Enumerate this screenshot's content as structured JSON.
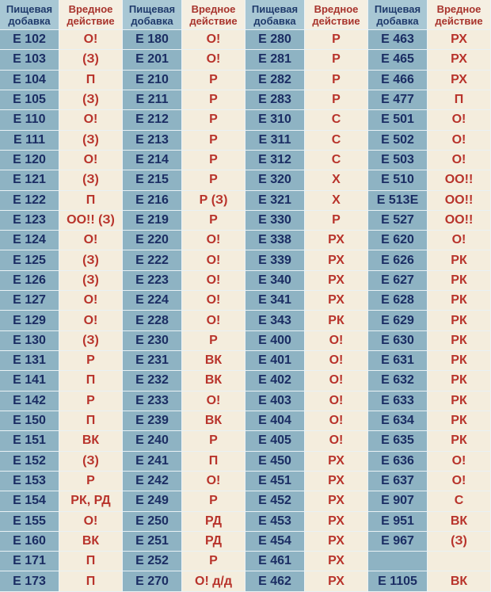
{
  "headers": {
    "code": "Пищевая добавка",
    "action": "Вредное действие"
  },
  "colors": {
    "code_bg": "#8eb3c3",
    "code_text": "#1b2d63",
    "action_bg": "#f4eddd",
    "action_text": "#b8332b"
  },
  "columns": [
    {
      "rows": [
        [
          "E 102",
          "О!"
        ],
        [
          "E 103",
          "(З)"
        ],
        [
          "E 104",
          "П"
        ],
        [
          "E 105",
          "(З)"
        ],
        [
          "E 110",
          "О!"
        ],
        [
          "E 111",
          "(З)"
        ],
        [
          "E 120",
          "О!"
        ],
        [
          "E 121",
          "(З)"
        ],
        [
          "E 122",
          "П"
        ],
        [
          "E 123",
          "ОО!! (З)"
        ],
        [
          "E 124",
          "О!"
        ],
        [
          "E 125",
          "(З)"
        ],
        [
          "E 126",
          "(З)"
        ],
        [
          "E 127",
          "О!"
        ],
        [
          "E 129",
          "О!"
        ],
        [
          "E 130",
          "(З)"
        ],
        [
          "E 131",
          "Р"
        ],
        [
          "E 141",
          "П"
        ],
        [
          "E 142",
          "Р"
        ],
        [
          "E 150",
          "П"
        ],
        [
          "E 151",
          "ВК"
        ],
        [
          "E 152",
          "(З)"
        ],
        [
          "E 153",
          "Р"
        ],
        [
          "E 154",
          "РК, РД"
        ],
        [
          "E 155",
          "О!"
        ],
        [
          "E 160",
          "ВК"
        ],
        [
          "E 171",
          "П"
        ],
        [
          "E 173",
          "П"
        ]
      ]
    },
    {
      "rows": [
        [
          "E 180",
          "О!"
        ],
        [
          "E 201",
          "О!"
        ],
        [
          "E 210",
          "Р"
        ],
        [
          "E 211",
          "Р"
        ],
        [
          "E 212",
          "Р"
        ],
        [
          "E 213",
          "Р"
        ],
        [
          "E 214",
          "Р"
        ],
        [
          "E 215",
          "Р"
        ],
        [
          "E 216",
          "Р (З)"
        ],
        [
          "E 219",
          "Р"
        ],
        [
          "E 220",
          "О!"
        ],
        [
          "E 222",
          "О!"
        ],
        [
          "E 223",
          "О!"
        ],
        [
          "E 224",
          "О!"
        ],
        [
          "E 228",
          "О!"
        ],
        [
          "E 230",
          "Р"
        ],
        [
          "E 231",
          "ВК"
        ],
        [
          "E 232",
          "ВК"
        ],
        [
          "E 233",
          "О!"
        ],
        [
          "E 239",
          "ВК"
        ],
        [
          "E 240",
          "Р"
        ],
        [
          "E 241",
          "П"
        ],
        [
          "E 242",
          "О!"
        ],
        [
          "E 249",
          "Р"
        ],
        [
          "E 250",
          "РД"
        ],
        [
          "E 251",
          "РД"
        ],
        [
          "E 252",
          "Р"
        ],
        [
          "E 270",
          "О! д/д"
        ]
      ]
    },
    {
      "rows": [
        [
          "E 280",
          "Р"
        ],
        [
          "E 281",
          "Р"
        ],
        [
          "E 282",
          "Р"
        ],
        [
          "E 283",
          "Р"
        ],
        [
          "E 310",
          "С"
        ],
        [
          "E 311",
          "С"
        ],
        [
          "E 312",
          "С"
        ],
        [
          "E 320",
          "Х"
        ],
        [
          "E 321",
          "Х"
        ],
        [
          "E 330",
          "Р"
        ],
        [
          "E 338",
          "РХ"
        ],
        [
          "E 339",
          "РХ"
        ],
        [
          "E 340",
          "РХ"
        ],
        [
          "E 341",
          "РХ"
        ],
        [
          "E 343",
          "РК"
        ],
        [
          "E 400",
          "О!"
        ],
        [
          "E 401",
          "О!"
        ],
        [
          "E 402",
          "О!"
        ],
        [
          "E 403",
          "О!"
        ],
        [
          "E 404",
          "О!"
        ],
        [
          "E 405",
          "О!"
        ],
        [
          "E 450",
          "РХ"
        ],
        [
          "E 451",
          "РХ"
        ],
        [
          "E 452",
          "РХ"
        ],
        [
          "E 453",
          "РХ"
        ],
        [
          "E 454",
          "РХ"
        ],
        [
          "E 461",
          "РХ"
        ],
        [
          "E 462",
          "РХ"
        ]
      ]
    },
    {
      "rows": [
        [
          "E 463",
          "РХ"
        ],
        [
          "E 465",
          "РХ"
        ],
        [
          "E 466",
          "РХ"
        ],
        [
          "E 477",
          "П"
        ],
        [
          "E 501",
          "О!"
        ],
        [
          "E 502",
          "О!"
        ],
        [
          "E 503",
          "О!"
        ],
        [
          "E 510",
          "ОО!!"
        ],
        [
          "E 513E",
          "ОО!!"
        ],
        [
          "E 527",
          "ОО!!"
        ],
        [
          "E 620",
          "О!"
        ],
        [
          "E 626",
          "РК"
        ],
        [
          "E 627",
          "РК"
        ],
        [
          "E 628",
          "РК"
        ],
        [
          "E 629",
          "РК"
        ],
        [
          "E 630",
          "РК"
        ],
        [
          "E 631",
          "РК"
        ],
        [
          "E 632",
          "РК"
        ],
        [
          "E 633",
          "РК"
        ],
        [
          "E 634",
          "РК"
        ],
        [
          "E 635",
          "РК"
        ],
        [
          "E 636",
          "О!"
        ],
        [
          "E 637",
          "О!"
        ],
        [
          "E 907",
          "С"
        ],
        [
          "E 951",
          "ВК"
        ],
        [
          "E 967",
          "(З)"
        ],
        [
          "",
          ""
        ],
        [
          "E 1105",
          "ВК"
        ]
      ]
    }
  ]
}
